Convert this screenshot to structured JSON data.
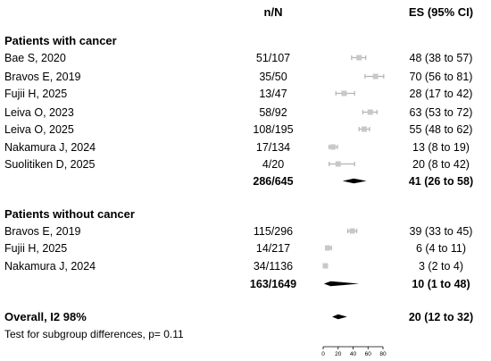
{
  "headers": {
    "nN": "n/N",
    "es": "ES (95% CI)"
  },
  "chart_data": {
    "type": "forest",
    "xlim": [
      0,
      80
    ],
    "xticks": [
      0,
      20,
      40,
      60,
      80
    ],
    "groups": [
      {
        "label": "Patients with cancer",
        "studies": [
          {
            "name": "Bae S, 2020",
            "nN": "51/107",
            "es": 48,
            "lo": 38,
            "hi": 57,
            "es_text": "48 (38 to 57)"
          },
          {
            "name": "Bravos E, 2019",
            "nN": "35/50",
            "es": 70,
            "lo": 56,
            "hi": 81,
            "es_text": "70 (56 to 81)"
          },
          {
            "name": "Fujii H, 2025",
            "nN": "13/47",
            "es": 28,
            "lo": 17,
            "hi": 42,
            "es_text": "28 (17 to 42)"
          },
          {
            "name": "Leiva O, 2023",
            "nN": "58/92",
            "es": 63,
            "lo": 53,
            "hi": 72,
            "es_text": "63 (53 to 72)"
          },
          {
            "name": "Leiva O, 2025",
            "nN": "108/195",
            "es": 55,
            "lo": 48,
            "hi": 62,
            "es_text": "55 (48 to 62)"
          },
          {
            "name": "Nakamura J, 2024",
            "nN": "17/134",
            "es": 13,
            "lo": 8,
            "hi": 19,
            "es_text": "13 (8 to 19)"
          },
          {
            "name": "Suolitiken D, 2025",
            "nN": "4/20",
            "es": 20,
            "lo": 8,
            "hi": 42,
            "es_text": "20 (8 to 42)"
          }
        ],
        "pooled": {
          "nN": "286/645",
          "es": 41,
          "lo": 26,
          "hi": 58,
          "es_text": "41 (26 to 58)"
        }
      },
      {
        "label": "Patients without cancer",
        "studies": [
          {
            "name": "Bravos E, 2019",
            "nN": "115/296",
            "es": 39,
            "lo": 33,
            "hi": 45,
            "es_text": "39 (33 to 45)"
          },
          {
            "name": "Fujii H, 2025",
            "nN": "14/217",
            "es": 6,
            "lo": 4,
            "hi": 11,
            "es_text": "6 (4 to 11)"
          },
          {
            "name": "Nakamura J, 2024",
            "nN": "34/1136",
            "es": 3,
            "lo": 2,
            "hi": 4,
            "es_text": "3 (2 to 4)"
          }
        ],
        "pooled": {
          "nN": "163/1649",
          "es": 10,
          "lo": 1,
          "hi": 48,
          "es_text": "10 (1 to 48)"
        }
      }
    ],
    "overall": {
      "label": "Overall, I2 98%",
      "es": 20,
      "lo": 12,
      "hi": 32,
      "es_text": "20 (12 to 32)"
    },
    "subgroup_test": "Test for subgroup differences, p= 0.11"
  }
}
